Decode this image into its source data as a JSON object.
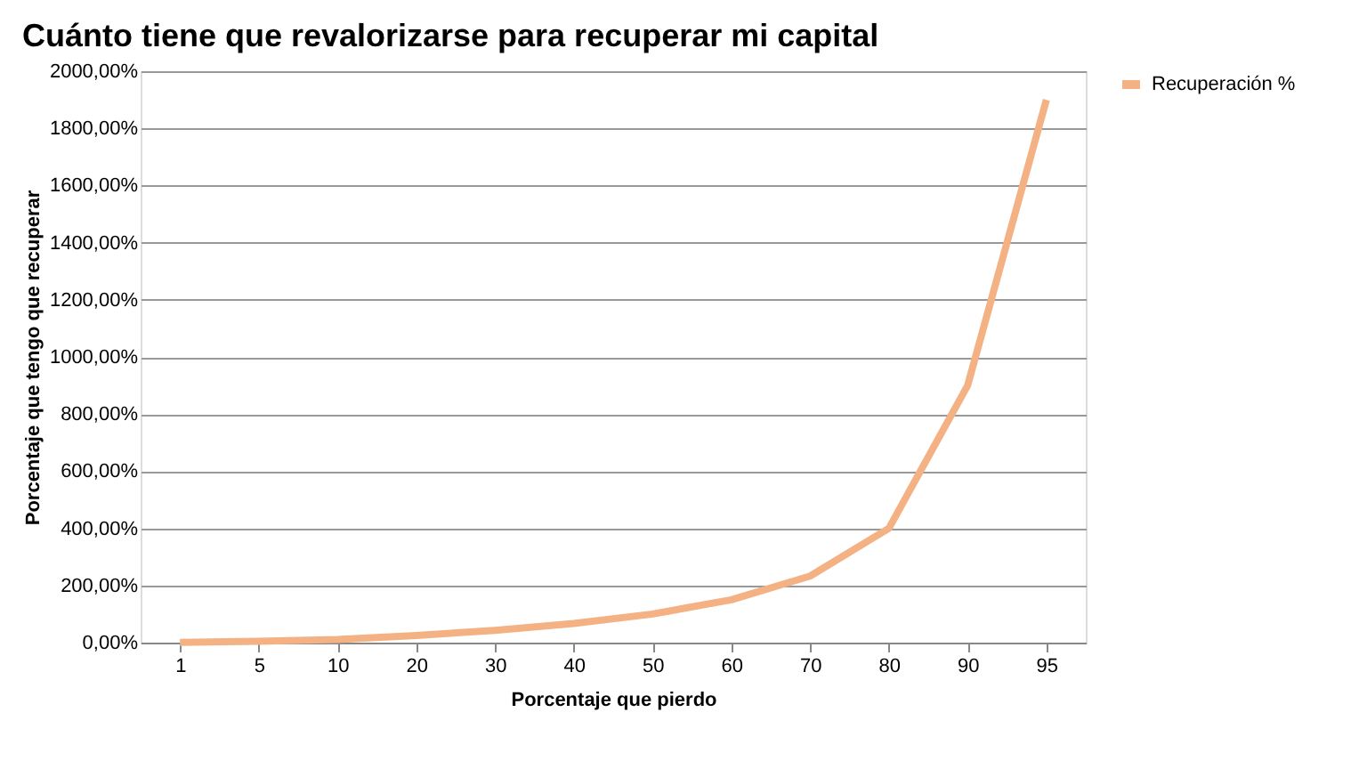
{
  "chart_data": {
    "type": "line",
    "title": "Cuánto tiene que revalorizarse para recuperar mi capital",
    "xlabel": "Porcentaje que pierdo",
    "ylabel": "Porcentaje que tengo que recuperar",
    "categories": [
      "1",
      "5",
      "10",
      "20",
      "30",
      "40",
      "50",
      "60",
      "70",
      "80",
      "90",
      "95"
    ],
    "series": [
      {
        "name": "Recuperación %",
        "color": "#f4b183",
        "values": [
          1,
          5,
          11,
          25,
          43,
          67,
          100,
          150,
          233,
          400,
          900,
          1900
        ]
      }
    ],
    "ylim": [
      0,
      2000
    ],
    "yticks": [
      {
        "value": 0,
        "label": "0,00%"
      },
      {
        "value": 200,
        "label": "200,00%"
      },
      {
        "value": 400,
        "label": "400,00%"
      },
      {
        "value": 600,
        "label": "600,00%"
      },
      {
        "value": 800,
        "label": "800,00%"
      },
      {
        "value": 1000,
        "label": "1000,00%"
      },
      {
        "value": 1200,
        "label": "1200,00%"
      },
      {
        "value": 1400,
        "label": "1400,00%"
      },
      {
        "value": 1600,
        "label": "1600,00%"
      },
      {
        "value": 1800,
        "label": "1800,00%"
      },
      {
        "value": 2000,
        "label": "2000,00%"
      }
    ],
    "grid": "y",
    "legend": "right",
    "marker": "none",
    "line_style": "solid"
  }
}
